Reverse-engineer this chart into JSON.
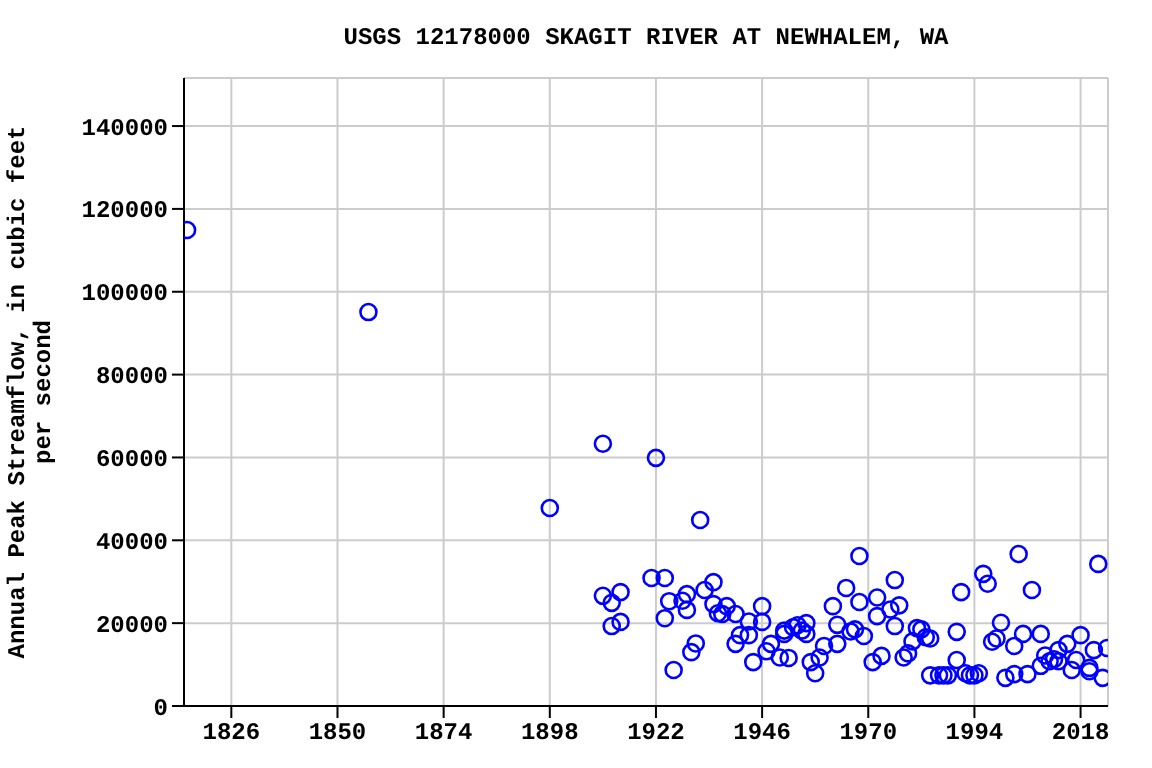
{
  "chart_data": {
    "type": "scatter",
    "title": "USGS 12178000 SKAGIT RIVER AT NEWHALEM, WA",
    "ylabel": "Annual Peak Streamflow, in cubic feet per second",
    "xlim": [
      1815.3,
      2024.2
    ],
    "xticks": [
      1826,
      1850,
      1874,
      1898,
      1922,
      1946,
      1970,
      1994,
      2018
    ],
    "ylim": [
      0,
      151600
    ],
    "yticks": [
      0,
      20000,
      40000,
      60000,
      80000,
      100000,
      120000,
      140000
    ],
    "grid": true,
    "marker": "circle",
    "color": "#0000ff",
    "x": [
      1816,
      1857,
      1898,
      1910,
      1922,
      1932,
      1910,
      1912,
      1914,
      1912,
      1914,
      1921,
      1924,
      1924,
      1925,
      1926,
      1928,
      1929,
      1929,
      1930,
      1931,
      1933,
      1935,
      1935,
      1936,
      1938,
      1937,
      1940,
      1940,
      1941,
      1943,
      1943,
      1944,
      1946,
      1946,
      1947,
      1948,
      1950,
      1951,
      1952,
      1951,
      1953,
      1954,
      1955,
      1956,
      1956,
      1957,
      1958,
      1959,
      1960,
      1962,
      1963,
      1963,
      1965,
      1966,
      1967,
      1968,
      1968,
      1969,
      1971,
      1972,
      1972,
      1973,
      1975,
      1976,
      1976,
      1977,
      1978,
      1979,
      1980,
      1981,
      1982,
      1983,
      1984,
      1984,
      1986,
      1987,
      1988,
      1990,
      1990,
      1991,
      1992,
      1993,
      1994,
      1995,
      1996,
      1997,
      1998,
      1999,
      2000,
      2001,
      2003,
      2003,
      2004,
      2005,
      2006,
      2007,
      2009,
      2009,
      2010,
      2011,
      2012,
      2013,
      2013,
      2015,
      2016,
      2017,
      2018,
      2020,
      2020,
      2021,
      2022,
      2023,
      2024
    ],
    "values": [
      114900,
      95100,
      47800,
      63300,
      59900,
      44900,
      26600,
      24900,
      27500,
      19300,
      20300,
      30900,
      30900,
      21200,
      25300,
      8700,
      25400,
      27000,
      23200,
      13000,
      15100,
      28000,
      29900,
      24600,
      22400,
      24100,
      22200,
      22200,
      15000,
      17100,
      17100,
      20400,
      10600,
      20300,
      24100,
      13200,
      15000,
      11700,
      17400,
      11600,
      18200,
      19000,
      19500,
      18200,
      20000,
      17400,
      10600,
      7900,
      11700,
      14500,
      24100,
      15000,
      19600,
      28500,
      18000,
      18500,
      36200,
      25100,
      16900,
      10600,
      21700,
      26200,
      12100,
      23300,
      19300,
      30400,
      24300,
      11700,
      12700,
      15600,
      18800,
      18500,
      16600,
      16300,
      7400,
      7400,
      7400,
      7400,
      11100,
      17900,
      27500,
      7900,
      7400,
      7400,
      7900,
      31900,
      29500,
      15500,
      16300,
      20100,
      6800,
      14500,
      7700,
      36700,
      17400,
      7700,
      28000,
      17400,
      9700,
      12200,
      10800,
      11300,
      13500,
      10800,
      15000,
      8700,
      11100,
      17100,
      8400,
      9200,
      13500,
      34300,
      6800,
      14000
    ]
  }
}
